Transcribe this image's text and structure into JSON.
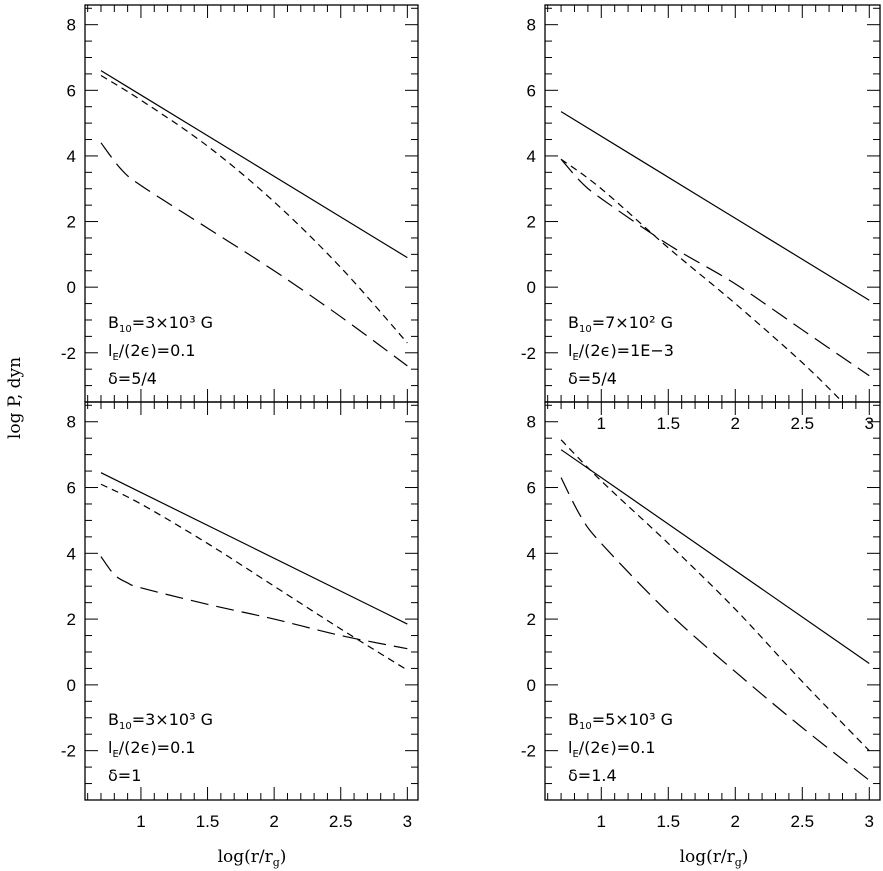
{
  "figure": {
    "ylabel": "log P, dyn",
    "xlabel": "log(r/r_g)"
  },
  "chart_data": [
    {
      "type": "line",
      "id": "top-left",
      "xlim": [
        0.58,
        3.08
      ],
      "ylim": [
        -3.5,
        8.6
      ],
      "x_ticks": [
        1,
        1.5,
        2,
        2.5,
        3
      ],
      "y_ticks": [
        -2,
        0,
        2,
        4,
        6,
        8
      ],
      "annotation": [
        {
          "pre": "B",
          "sub": "10",
          "post": "=3×10³ G"
        },
        {
          "pre": "l",
          "sub": "E",
          "post": "/(2ϵ)=0.1"
        },
        {
          "pre": "δ=5/4",
          "sub": "",
          "post": ""
        }
      ],
      "series": [
        {
          "style": "solid",
          "x": [
            0.7,
            3.0
          ],
          "y": [
            6.6,
            0.9
          ]
        },
        {
          "style": "dash",
          "x": [
            0.7,
            1.0,
            1.5,
            2.0,
            2.5,
            3.0
          ],
          "y": [
            6.45,
            5.7,
            4.3,
            2.6,
            0.6,
            -1.7
          ]
        },
        {
          "style": "long-dash",
          "x": [
            0.7,
            0.85,
            1.0,
            1.5,
            2.0,
            2.5,
            3.0
          ],
          "y": [
            4.4,
            3.6,
            3.1,
            1.8,
            0.5,
            -0.9,
            -2.4
          ]
        }
      ]
    },
    {
      "type": "line",
      "id": "top-right",
      "xlim": [
        0.58,
        3.08
      ],
      "ylim": [
        -3.5,
        8.6
      ],
      "x_ticks": [
        1,
        1.5,
        2,
        2.5,
        3
      ],
      "y_ticks": [
        -2,
        0,
        2,
        4,
        6,
        8
      ],
      "annotation": [
        {
          "pre": "B",
          "sub": "10",
          "post": "=7×10² G"
        },
        {
          "pre": "l",
          "sub": "E",
          "post": "/(2ϵ)=1E−3"
        },
        {
          "pre": "δ=5/4",
          "sub": "",
          "post": ""
        }
      ],
      "series": [
        {
          "style": "solid",
          "x": [
            0.7,
            3.0
          ],
          "y": [
            5.35,
            -0.4
          ]
        },
        {
          "style": "dash",
          "x": [
            0.7,
            1.0,
            1.5,
            2.0,
            2.5,
            2.8
          ],
          "y": [
            3.9,
            3.0,
            1.2,
            -0.5,
            -2.3,
            -3.5
          ]
        },
        {
          "style": "long-dash",
          "x": [
            0.7,
            0.85,
            1.0,
            1.5,
            2.0,
            2.5,
            3.0
          ],
          "y": [
            3.9,
            3.2,
            2.7,
            1.3,
            0.1,
            -1.3,
            -2.7
          ]
        }
      ]
    },
    {
      "type": "line",
      "id": "bottom-left",
      "xlim": [
        0.58,
        3.08
      ],
      "ylim": [
        -3.5,
        8.6
      ],
      "x_ticks": [
        1,
        1.5,
        2,
        2.5,
        3
      ],
      "y_ticks": [
        -2,
        0,
        2,
        4,
        6,
        8
      ],
      "annotation": [
        {
          "pre": "B",
          "sub": "10",
          "post": "=3×10³ G"
        },
        {
          "pre": "l",
          "sub": "E",
          "post": "/(2ϵ)=0.1"
        },
        {
          "pre": "δ=1",
          "sub": "",
          "post": ""
        }
      ],
      "series": [
        {
          "style": "solid",
          "x": [
            0.7,
            3.0
          ],
          "y": [
            6.45,
            1.85
          ]
        },
        {
          "style": "dash",
          "x": [
            0.7,
            1.0,
            1.5,
            2.0,
            2.5,
            3.0
          ],
          "y": [
            6.1,
            5.5,
            4.3,
            3.0,
            1.7,
            0.45
          ]
        },
        {
          "style": "long-dash",
          "x": [
            0.7,
            0.8,
            0.9,
            1.0,
            1.5,
            2.0,
            2.5,
            3.0
          ],
          "y": [
            3.9,
            3.35,
            3.1,
            2.95,
            2.45,
            2.0,
            1.5,
            1.1
          ]
        }
      ]
    },
    {
      "type": "line",
      "id": "bottom-right",
      "xlim": [
        0.58,
        3.08
      ],
      "ylim": [
        -3.5,
        8.6
      ],
      "x_ticks": [
        1,
        1.5,
        2,
        2.5,
        3
      ],
      "y_ticks": [
        -2,
        0,
        2,
        4,
        6,
        8
      ],
      "annotation": [
        {
          "pre": "B",
          "sub": "10",
          "post": "=5×10³ G"
        },
        {
          "pre": "l",
          "sub": "E",
          "post": "/(2ϵ)=0.1"
        },
        {
          "pre": "δ=1.4",
          "sub": "",
          "post": ""
        }
      ],
      "series": [
        {
          "style": "solid",
          "x": [
            0.7,
            3.0
          ],
          "y": [
            7.15,
            0.65
          ]
        },
        {
          "style": "dash",
          "x": [
            0.7,
            1.0,
            1.5,
            2.0,
            2.5,
            3.0
          ],
          "y": [
            7.45,
            6.2,
            4.3,
            2.3,
            0.1,
            -2.0
          ]
        },
        {
          "style": "long-dash",
          "x": [
            0.7,
            0.85,
            1.0,
            1.5,
            2.0,
            2.5,
            3.0
          ],
          "y": [
            6.3,
            5.1,
            4.3,
            2.2,
            0.4,
            -1.3,
            -2.9
          ]
        }
      ]
    }
  ]
}
